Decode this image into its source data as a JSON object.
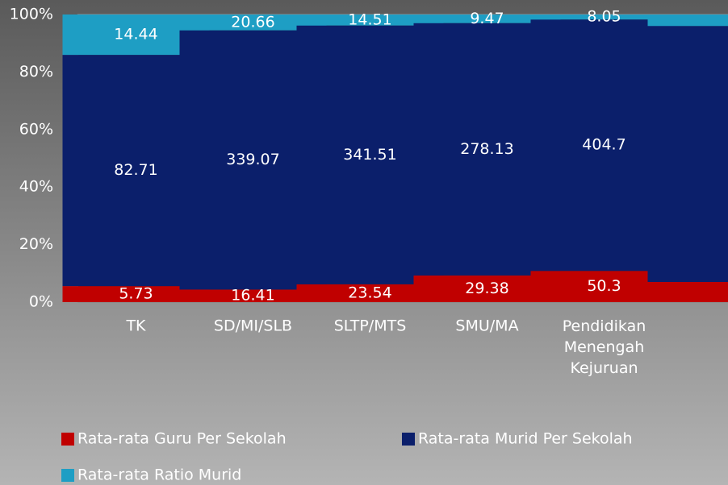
{
  "chart_data": {
    "type": "stacked_bar_percent",
    "categories": [
      "TK",
      "SD/MI/SLB",
      "SLTP/MTS",
      "SMU/MA",
      "Pendidikan Menengah Kejuruan",
      null
    ],
    "series": [
      {
        "name": "Rata-rata Guru Per Sekolah",
        "color": "#c00000",
        "values": [
          5.73,
          16.41,
          23.54,
          29.38,
          50.3,
          7
        ]
      },
      {
        "name": "Rata-rata Murid Per Sekolah",
        "color": "#0b1f6b",
        "values": [
          82.71,
          339.07,
          341.51,
          278.13,
          404.7,
          89
        ]
      },
      {
        "name": "Rata-rata Ratio Murid",
        "color": "#1e9ec4",
        "values": [
          14.44,
          20.66,
          14.51,
          9.47,
          8.05,
          4
        ]
      }
    ],
    "ylim": [
      0,
      100
    ],
    "yticks": [
      {
        "value": 0,
        "label": "0%"
      },
      {
        "value": 20,
        "label": "20%"
      },
      {
        "value": 40,
        "label": "40%"
      },
      {
        "value": 60,
        "label": "60%"
      },
      {
        "value": 80,
        "label": "80%"
      },
      {
        "value": 100,
        "label": "100%"
      }
    ],
    "grid": true
  }
}
